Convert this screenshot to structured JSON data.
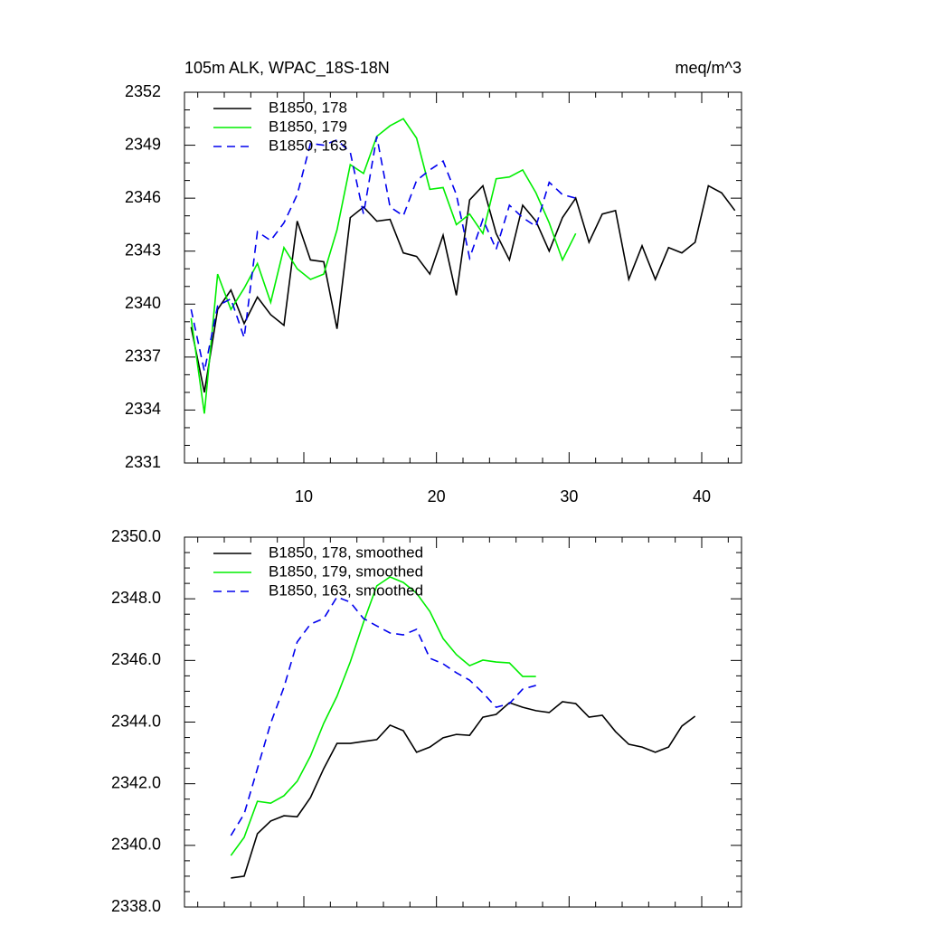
{
  "chart_data": [
    {
      "type": "line",
      "title": "105m ALK, WPAC_18S-18N",
      "units": "meq/m^3",
      "xlim": [
        1,
        43
      ],
      "xticks": [
        10,
        20,
        30,
        40
      ],
      "x_tick_labels": true,
      "x_minor": 5,
      "ylim": [
        2331,
        2352
      ],
      "yticks": [
        2331,
        2334,
        2337,
        2340,
        2343,
        2346,
        2349,
        2352
      ],
      "y_minor": 3,
      "legend": "upper left",
      "series": [
        {
          "name": "B1850, 178",
          "color": "#000000",
          "dash": false,
          "x": [
            1.5,
            2.5,
            3.5,
            4.5,
            5.5,
            6.5,
            7.5,
            8.5,
            9.5,
            10.5,
            11.5,
            12.5,
            13.5,
            14.5,
            15.5,
            16.5,
            17.5,
            18.5,
            19.5,
            20.5,
            21.5,
            22.5,
            23.5,
            24.5,
            25.5,
            26.5,
            27.5,
            28.5,
            29.5,
            30.5,
            31.5,
            32.5,
            33.5,
            34.5,
            35.5,
            36.5,
            37.5,
            38.5,
            39.5,
            40.5,
            41.5,
            42.5
          ],
          "values": [
            2338.7,
            2335.0,
            2339.7,
            2340.8,
            2338.9,
            2340.4,
            2339.4,
            2338.8,
            2344.7,
            2342.5,
            2342.4,
            2338.6,
            2344.9,
            2345.5,
            2344.7,
            2344.8,
            2342.9,
            2342.7,
            2341.7,
            2343.9,
            2340.5,
            2345.9,
            2346.7,
            2344.0,
            2342.5,
            2345.6,
            2344.7,
            2343.0,
            2344.9,
            2346.0,
            2343.5,
            2345.1,
            2345.3,
            2341.4,
            2343.3,
            2341.4,
            2343.2,
            2342.9,
            2343.5,
            2346.7,
            2346.3,
            2345.3
          ]
        },
        {
          "name": "B1850, 179",
          "color": "#00ee00",
          "dash": false,
          "x": [
            1.5,
            2.5,
            3.5,
            4.5,
            5.5,
            6.5,
            7.5,
            8.5,
            9.5,
            10.5,
            11.5,
            12.5,
            13.5,
            14.5,
            15.5,
            16.5,
            17.5,
            18.5,
            19.5,
            20.5,
            21.5,
            22.5,
            23.5,
            24.5,
            25.5,
            26.5,
            27.5,
            28.5,
            29.5,
            30.5
          ],
          "values": [
            2339.2,
            2333.8,
            2341.7,
            2339.7,
            2340.9,
            2342.3,
            2340.1,
            2343.2,
            2342.0,
            2341.4,
            2341.7,
            2344.2,
            2347.9,
            2347.4,
            2349.5,
            2350.1,
            2350.5,
            2349.4,
            2346.5,
            2346.6,
            2344.5,
            2345.1,
            2344.0,
            2347.1,
            2347.2,
            2347.6,
            2346.3,
            2344.6,
            2342.5,
            2344.0
          ]
        },
        {
          "name": "B1850, 163",
          "color": "#0000ee",
          "dash": true,
          "x": [
            1.5,
            2.5,
            3.5,
            4.5,
            5.5,
            6.5,
            7.5,
            8.5,
            9.5,
            10.5,
            11.5,
            12.5,
            13.5,
            14.5,
            15.5,
            16.5,
            17.5,
            18.5,
            19.5,
            20.5,
            21.5,
            22.5,
            23.5,
            24.5,
            25.5,
            26.5,
            27.5,
            28.5,
            29.5,
            30.5
          ],
          "values": [
            2339.7,
            2336.2,
            2339.9,
            2340.3,
            2338.1,
            2344.1,
            2343.6,
            2344.6,
            2346.2,
            2349.1,
            2349.0,
            2349.3,
            2348.6,
            2345.1,
            2349.5,
            2345.5,
            2345.0,
            2347.0,
            2347.6,
            2348.1,
            2346.2,
            2342.6,
            2344.8,
            2343.1,
            2345.6,
            2344.9,
            2344.4,
            2346.9,
            2346.2,
            2346.0
          ]
        }
      ]
    },
    {
      "type": "line",
      "xlim": [
        1,
        43
      ],
      "xticks": [
        10,
        20,
        30,
        40
      ],
      "x_tick_labels": false,
      "x_minor": 5,
      "ylim": [
        2338,
        2350
      ],
      "yticks": [
        {
          "value": 2338,
          "label": "2338.0"
        },
        {
          "value": 2340,
          "label": "2340.0"
        },
        {
          "value": 2342,
          "label": "2342.0"
        },
        {
          "value": 2344,
          "label": "2344.0"
        },
        {
          "value": 2346,
          "label": "2346.0"
        },
        {
          "value": 2348,
          "label": "2348.0"
        },
        {
          "value": 2350,
          "label": "2350.0"
        }
      ],
      "y_minor": 4,
      "legend": "upper left",
      "series": [
        {
          "name": "B1850, 178, smoothed",
          "color": "#000000",
          "dash": false,
          "x": [
            4.5,
            5.5,
            6.5,
            7.5,
            8.5,
            9.5,
            10.5,
            11.5,
            12.5,
            13.5,
            14.5,
            15.5,
            16.5,
            17.5,
            18.5,
            19.5,
            20.5,
            21.5,
            22.5,
            23.5,
            24.5,
            25.5,
            26.5,
            27.5,
            28.5,
            29.5,
            30.5,
            31.5,
            32.5,
            33.5,
            34.5,
            35.5,
            36.5,
            37.5,
            38.5,
            39.5
          ],
          "values": [
            2338.94,
            2339.0,
            2340.38,
            2340.79,
            2340.96,
            2340.93,
            2341.55,
            2342.49,
            2343.31,
            2343.31,
            2343.37,
            2343.43,
            2343.9,
            2343.72,
            2343.02,
            2343.19,
            2343.49,
            2343.6,
            2343.57,
            2344.16,
            2344.25,
            2344.63,
            2344.48,
            2344.37,
            2344.31,
            2344.66,
            2344.6,
            2344.16,
            2344.22,
            2343.69,
            2343.28,
            2343.19,
            2343.02,
            2343.19,
            2343.87,
            2344.19
          ]
        },
        {
          "name": "B1850, 179, smoothed",
          "color": "#00ee00",
          "dash": false,
          "x": [
            4.5,
            5.5,
            6.5,
            7.5,
            8.5,
            9.5,
            10.5,
            11.5,
            12.5,
            13.5,
            14.5,
            15.5,
            16.5,
            17.5,
            18.5,
            19.5,
            20.5,
            21.5,
            22.5,
            23.5,
            24.5,
            25.5,
            26.5,
            27.5
          ],
          "values": [
            2339.67,
            2340.26,
            2341.43,
            2341.37,
            2341.61,
            2342.08,
            2342.9,
            2343.96,
            2344.84,
            2345.95,
            2347.24,
            2348.42,
            2348.71,
            2348.53,
            2348.18,
            2347.59,
            2346.71,
            2346.19,
            2345.83,
            2346.01,
            2345.95,
            2345.92,
            2345.48,
            2345.48
          ]
        },
        {
          "name": "B1850, 163, smoothed",
          "color": "#0000ee",
          "dash": true,
          "x": [
            4.5,
            5.5,
            6.5,
            7.5,
            8.5,
            9.5,
            10.5,
            11.5,
            12.5,
            13.5,
            14.5,
            15.5,
            16.5,
            17.5,
            18.5,
            19.5,
            20.5,
            21.5,
            22.5,
            23.5,
            24.5,
            25.5,
            26.5,
            27.5
          ],
          "values": [
            2340.32,
            2341.02,
            2342.49,
            2343.96,
            2345.13,
            2346.6,
            2347.18,
            2347.36,
            2348.06,
            2347.89,
            2347.36,
            2347.12,
            2346.89,
            2346.83,
            2347.01,
            2346.07,
            2345.89,
            2345.6,
            2345.36,
            2344.95,
            2344.48,
            2344.6,
            2345.07,
            2345.19
          ]
        }
      ]
    }
  ]
}
